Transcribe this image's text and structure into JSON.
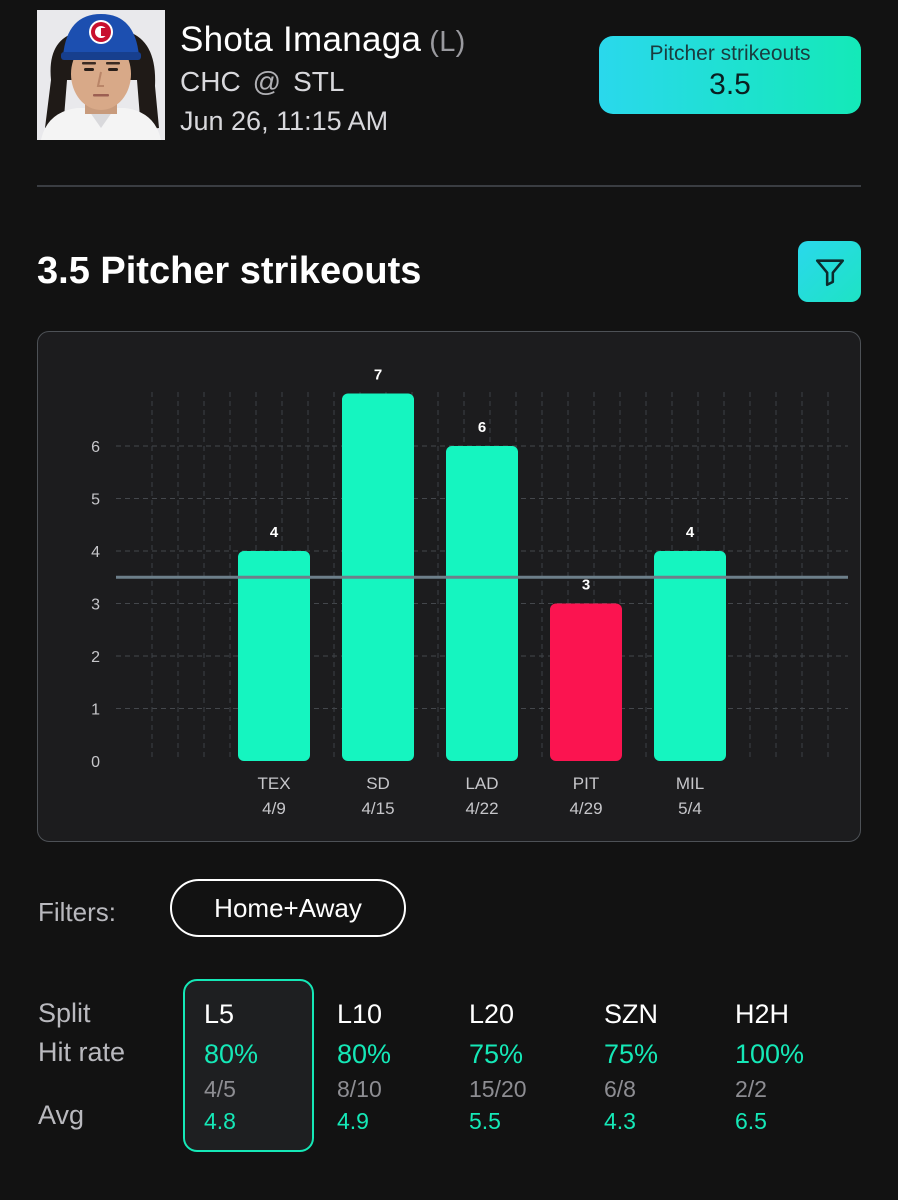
{
  "header": {
    "player_name": "Shota Imanaga",
    "hand": "(L)",
    "team": "CHC",
    "at": "@",
    "opponent": "STL",
    "game_time": "Jun 26, 11:15 AM",
    "prop_label": "Pitcher strikeouts",
    "prop_value": "3.5"
  },
  "section": {
    "title": "3.5 Pitcher strikeouts",
    "filter_icon": "funnel-icon"
  },
  "chart_data": {
    "type": "bar",
    "categories": [
      "TEX",
      "SD",
      "LAD",
      "PIT",
      "MIL"
    ],
    "dates": [
      "4/9",
      "4/15",
      "4/22",
      "4/29",
      "5/4"
    ],
    "values": [
      4,
      7,
      6,
      3,
      4
    ],
    "value_labels": [
      "4",
      "7",
      "6",
      "3",
      "4"
    ],
    "line": 3.5,
    "yticks": [
      "0",
      "1",
      "2",
      "3",
      "4",
      "5",
      "6"
    ],
    "ylim": [
      0,
      7
    ],
    "grid": true,
    "colors": {
      "over": "#15f5c0",
      "under": "#fb1450",
      "line": "#6d7f8a"
    }
  },
  "filters": {
    "label": "Filters:",
    "selected": "Home+Away"
  },
  "splits": {
    "labels": {
      "split": "Split",
      "hit_rate": "Hit rate",
      "avg": "Avg"
    },
    "columns": [
      {
        "name": "L5",
        "hit_rate": "80%",
        "fraction": "4/5",
        "avg": "4.8"
      },
      {
        "name": "L10",
        "hit_rate": "80%",
        "fraction": "8/10",
        "avg": "4.9"
      },
      {
        "name": "L20",
        "hit_rate": "75%",
        "fraction": "15/20",
        "avg": "5.5"
      },
      {
        "name": "SZN",
        "hit_rate": "75%",
        "fraction": "6/8",
        "avg": "4.3"
      },
      {
        "name": "H2H",
        "hit_rate": "100%",
        "fraction": "2/2",
        "avg": "6.5"
      }
    ],
    "selected": "L5",
    "accent": "#15e8b7"
  }
}
